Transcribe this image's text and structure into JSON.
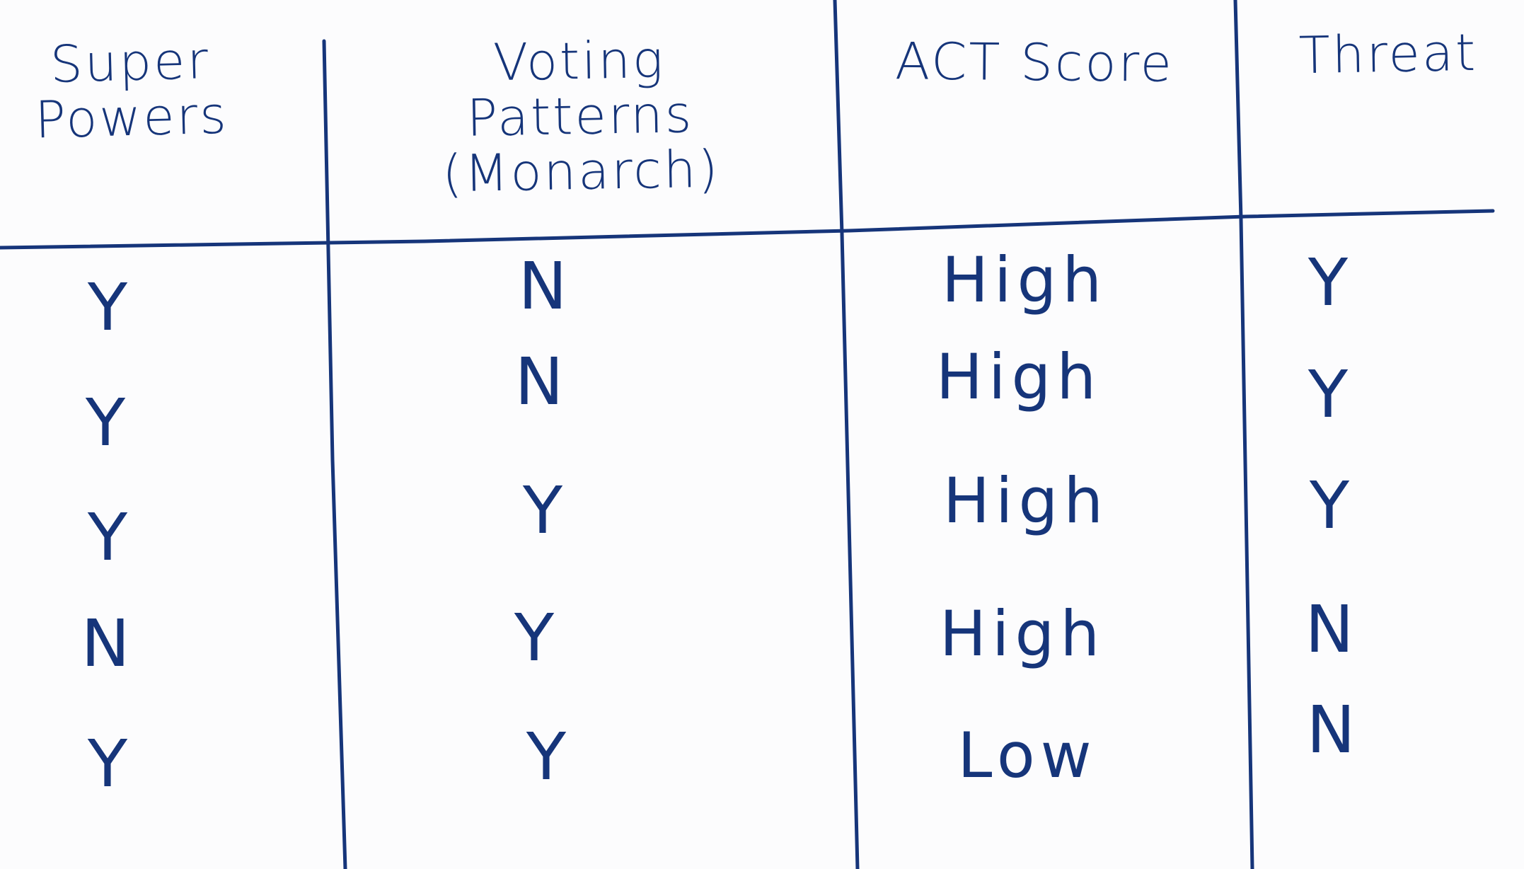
{
  "table": {
    "headers": [
      "Super Powers",
      "Voting Patterns (Monarch)",
      "ACT Score",
      "Threat"
    ],
    "rows": [
      [
        "Y",
        "N",
        "High",
        "Y"
      ],
      [
        "Y",
        "N",
        "High",
        "Y"
      ],
      [
        "Y",
        "Y",
        "High",
        "Y"
      ],
      [
        "N",
        "Y",
        "High",
        "N"
      ],
      [
        "Y",
        "Y",
        "Low",
        "N"
      ]
    ]
  },
  "colors": {
    "ink": "#16357a",
    "paper": "#fcfcfd"
  }
}
